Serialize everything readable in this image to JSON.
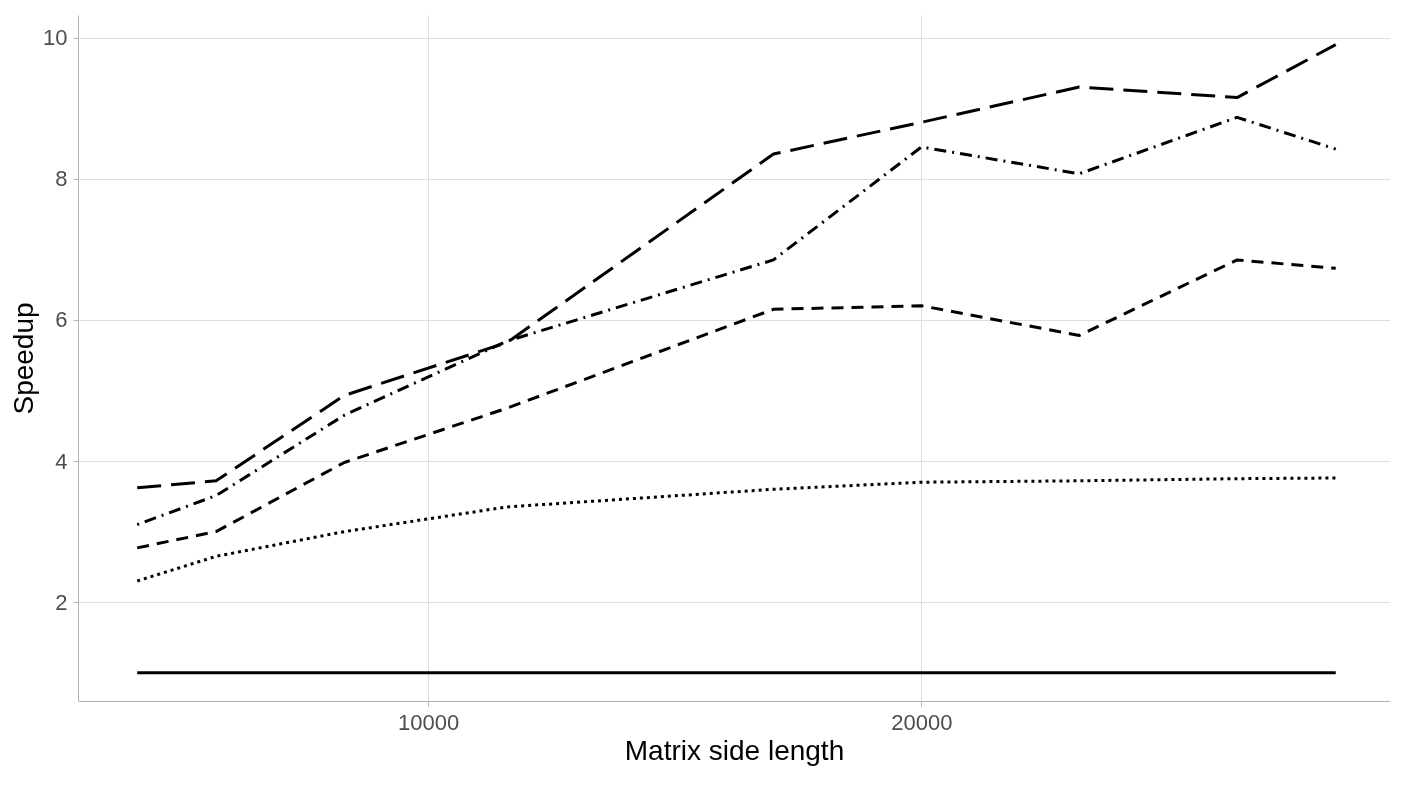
{
  "chart_data": {
    "type": "line",
    "xlabel": "Matrix side length",
    "ylabel": "Speedup",
    "x": [
      4100,
      5700,
      8300,
      11600,
      17000,
      20000,
      23200,
      26400,
      28400
    ],
    "series": [
      {
        "color": "#000000",
        "line_style": "solid",
        "values": [
          1,
          1,
          1,
          1,
          1,
          1,
          1,
          1,
          1
        ]
      },
      {
        "color": "#000000",
        "line_style": "dotted",
        "values": [
          2.3,
          2.65,
          3.0,
          3.35,
          3.6,
          3.7,
          3.72,
          3.75,
          3.76
        ]
      },
      {
        "color": "#000000",
        "line_style": "dashed",
        "values": [
          2.77,
          3.0,
          3.98,
          4.75,
          6.15,
          6.2,
          5.78,
          6.85,
          6.73
        ]
      },
      {
        "color": "#000000",
        "line_style": "longdash",
        "values": [
          3.62,
          3.72,
          4.93,
          5.68,
          8.35,
          8.8,
          9.3,
          9.15,
          9.9
        ]
      },
      {
        "color": "#000000",
        "line_style": "dashdot",
        "values": [
          3.1,
          3.51,
          4.65,
          5.7,
          6.85,
          8.45,
          8.07,
          8.87,
          8.42
        ]
      }
    ],
    "xlim": [
      2900,
      29500
    ],
    "ylim": [
      0.6,
      10.32
    ],
    "xticks": [
      10000,
      20000
    ],
    "yticks": [
      2,
      4,
      6,
      8,
      10
    ],
    "grid": true,
    "marker": "none"
  }
}
